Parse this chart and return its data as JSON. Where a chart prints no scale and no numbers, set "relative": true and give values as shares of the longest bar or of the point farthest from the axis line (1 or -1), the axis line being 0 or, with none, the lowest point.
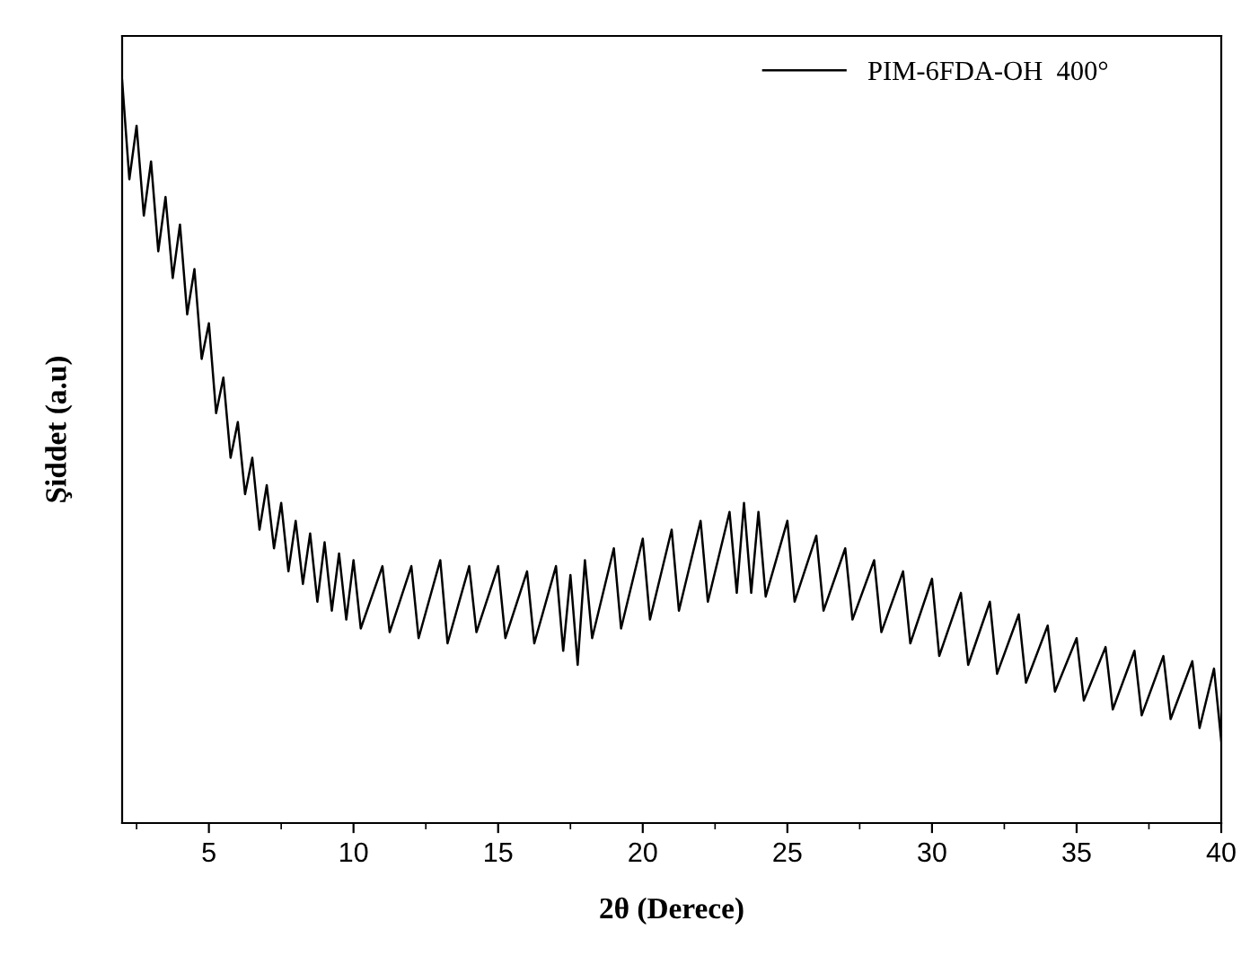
{
  "chart_data": {
    "type": "line",
    "xlabel": "2θ (Derece)",
    "ylabel": "Şiddet (a.u)",
    "relative": true,
    "xlim": [
      2,
      40
    ],
    "xticks": [
      5,
      10,
      15,
      20,
      25,
      30,
      35,
      40
    ],
    "tick_labels": "x",
    "grid": false,
    "legend": "top right",
    "marker": "none",
    "line_style": "solid",
    "series": [
      {
        "name": "PIM-6FDA-OH  400°",
        "color": "#000000",
        "x": [
          2.0,
          2.25,
          2.5,
          2.75,
          3.0,
          3.25,
          3.5,
          3.75,
          4.0,
          4.25,
          4.5,
          4.75,
          5.0,
          5.25,
          5.5,
          5.75,
          6.0,
          6.25,
          6.5,
          6.75,
          7.0,
          7.25,
          7.5,
          7.75,
          8.0,
          8.25,
          8.5,
          8.75,
          9.0,
          9.25,
          9.5,
          9.75,
          10,
          10.25,
          11,
          11.25,
          12,
          12.25,
          13,
          13.25,
          14,
          14.25,
          15,
          15.25,
          16,
          16.25,
          17,
          17.25,
          17.5,
          17.75,
          18,
          18.25,
          19,
          19.25,
          20,
          20.25,
          21,
          21.25,
          22,
          22.25,
          23,
          23.25,
          23.5,
          23.75,
          24,
          24.25,
          25,
          25.25,
          26,
          26.25,
          27,
          27.25,
          28,
          28.25,
          29,
          29.25,
          30,
          30.25,
          31,
          31.25,
          32,
          32.25,
          33,
          33.25,
          34,
          34.25,
          35,
          35.25,
          36,
          36.25,
          37,
          37.25,
          38,
          38.25,
          39,
          39.25,
          39.75,
          40
        ],
        "values": [
          1.0,
          0.867,
          0.939,
          0.818,
          0.891,
          0.77,
          0.843,
          0.734,
          0.806,
          0.685,
          0.746,
          0.625,
          0.673,
          0.552,
          0.6,
          0.492,
          0.54,
          0.443,
          0.492,
          0.395,
          0.455,
          0.37,
          0.431,
          0.339,
          0.407,
          0.322,
          0.39,
          0.298,
          0.378,
          0.286,
          0.363,
          0.274,
          0.354,
          0.262,
          0.346,
          0.257,
          0.346,
          0.249,
          0.354,
          0.242,
          0.346,
          0.257,
          0.346,
          0.249,
          0.339,
          0.242,
          0.346,
          0.232,
          0.334,
          0.213,
          0.354,
          0.249,
          0.37,
          0.262,
          0.383,
          0.274,
          0.395,
          0.286,
          0.407,
          0.298,
          0.419,
          0.31,
          0.431,
          0.31,
          0.419,
          0.305,
          0.407,
          0.298,
          0.387,
          0.286,
          0.37,
          0.274,
          0.354,
          0.257,
          0.339,
          0.242,
          0.329,
          0.225,
          0.31,
          0.213,
          0.298,
          0.201,
          0.281,
          0.189,
          0.266,
          0.177,
          0.249,
          0.165,
          0.237,
          0.153,
          0.232,
          0.145,
          0.225,
          0.14,
          0.218,
          0.128,
          0.208,
          0.111
        ]
      }
    ]
  }
}
